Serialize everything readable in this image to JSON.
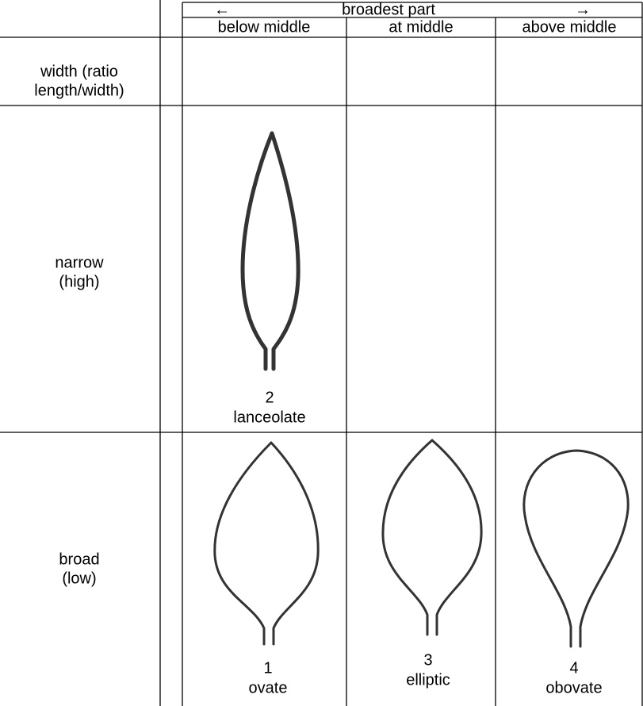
{
  "header": {
    "arrow_left": "←",
    "title": "broadest part",
    "arrow_right": "→",
    "columns": [
      "below middle",
      "at middle",
      "above middle"
    ]
  },
  "rows": [
    {
      "label": [
        "width (ratio",
        "length/width)"
      ]
    },
    {
      "label": [
        "narrow",
        "(high)"
      ],
      "cells": [
        {
          "number": 2,
          "name": "lanceolate"
        }
      ]
    },
    {
      "label": [
        "broad",
        "(low)"
      ],
      "cells": [
        {
          "number": 1,
          "name": "ovate"
        },
        {
          "number": 3,
          "name": "elliptic"
        },
        {
          "number": 4,
          "name": "obovate"
        }
      ]
    }
  ]
}
